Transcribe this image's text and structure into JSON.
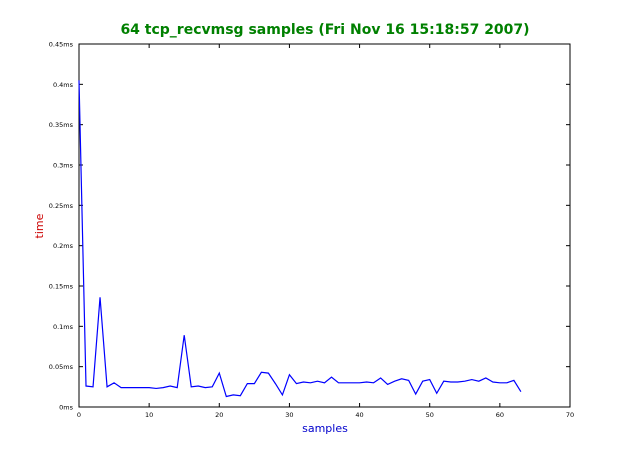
{
  "chart_data": {
    "type": "line",
    "title": "64 tcp_recvmsg samples (Fri Nov 16 15:18:57 2007)",
    "xlabel": "samples",
    "ylabel": "time",
    "xlim": [
      0,
      70
    ],
    "ylim": [
      0,
      0.45
    ],
    "x_ticks": [
      0,
      10,
      20,
      30,
      40,
      50,
      60,
      70
    ],
    "y_ticks": [
      0,
      0.05,
      0.1,
      0.15,
      0.2,
      0.25,
      0.3,
      0.35,
      0.4,
      0.45
    ],
    "x_tick_labels": [
      "0",
      "10",
      "20",
      "30",
      "40",
      "50",
      "60",
      "70"
    ],
    "y_tick_labels": [
      "0ms",
      "0.05ms",
      "0.1ms",
      "0.15ms",
      "0.2ms",
      "0.25ms",
      "0.3ms",
      "0.35ms",
      "0.4ms",
      "0.45ms"
    ],
    "grid": false,
    "series": [
      {
        "x": [
          0,
          1,
          2,
          3,
          4,
          5,
          6,
          7,
          8,
          9,
          10,
          11,
          12,
          13,
          14,
          15,
          16,
          17,
          18,
          19,
          20,
          21,
          22,
          23,
          24,
          25,
          26,
          27,
          28,
          29,
          30,
          31,
          32,
          33,
          34,
          35,
          36,
          37,
          38,
          39,
          40,
          41,
          42,
          43,
          44,
          45,
          46,
          47,
          48,
          49,
          50,
          51,
          52,
          53,
          54,
          55,
          56,
          57,
          58,
          59,
          60,
          61,
          62,
          63
        ],
        "values": [
          0.405,
          0.026,
          0.025,
          0.136,
          0.025,
          0.03,
          0.024,
          0.024,
          0.024,
          0.024,
          0.024,
          0.023,
          0.024,
          0.026,
          0.024,
          0.089,
          0.025,
          0.026,
          0.024,
          0.025,
          0.042,
          0.013,
          0.015,
          0.014,
          0.029,
          0.029,
          0.043,
          0.042,
          0.029,
          0.015,
          0.04,
          0.029,
          0.031,
          0.03,
          0.032,
          0.03,
          0.037,
          0.03,
          0.03,
          0.03,
          0.03,
          0.031,
          0.03,
          0.036,
          0.028,
          0.032,
          0.035,
          0.033,
          0.016,
          0.032,
          0.034,
          0.017,
          0.032,
          0.031,
          0.031,
          0.032,
          0.034,
          0.032,
          0.036,
          0.031,
          0.03,
          0.03,
          0.033,
          0.019
        ]
      }
    ],
    "colors": {
      "title": "#008000",
      "xlabel": "#0000cc",
      "ylabel": "#cc0000",
      "line": "#0000ff"
    }
  }
}
